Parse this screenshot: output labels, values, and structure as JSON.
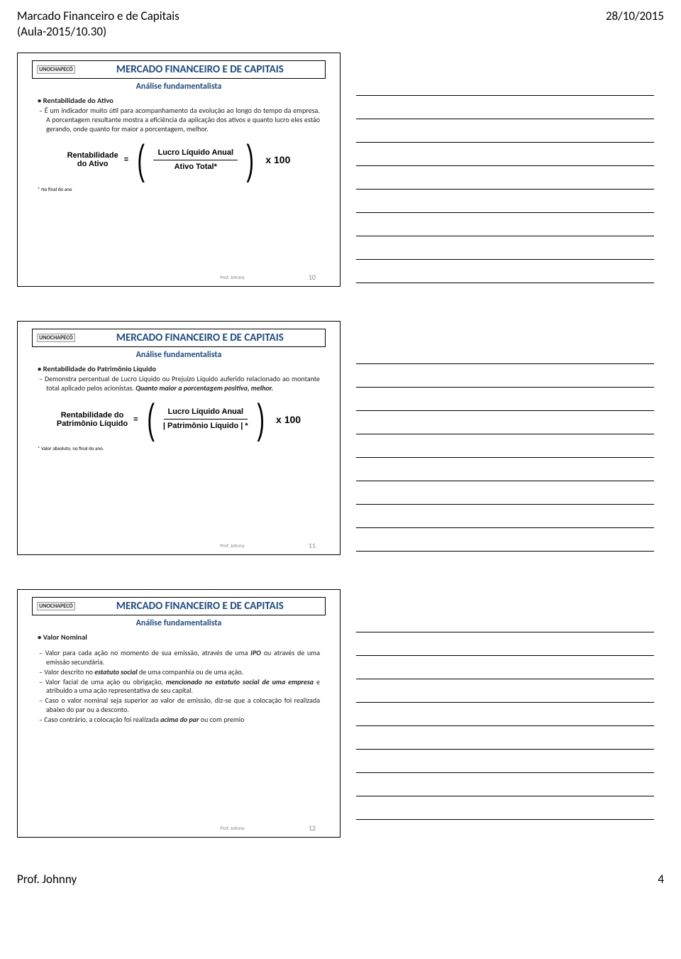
{
  "header": {
    "title_line1": "Marcado Financeiro e de Capitais",
    "title_line2": "(Aula-2015/10.30)",
    "date": "28/10/2015"
  },
  "slides": [
    {
      "logo": "UNOCHAPECÓ",
      "title": "MERCADO FINANCEIRO E DE CAPITAIS",
      "subtitle": "Análise fundamentalista",
      "topic": "Rentabilidade do Ativo",
      "bullets": [
        "É um indicador muito útil para acompanhamento da evolução ao longo do tempo da empresa. A porcentagem resultante mostra a eficiência da aplicação dos ativos e quanto lucro eles estão gerando, onde quanto for maior a porcentagem, melhor."
      ],
      "formula": {
        "lhs1": "Rentabilidade",
        "lhs2": "do Ativo",
        "top": "Lucro Líquido Anual",
        "bot": "Ativo Total*",
        "mult": "x 100"
      },
      "footnote": "* No final do ano",
      "author": "Prof. Johnny",
      "page": "10"
    },
    {
      "logo": "UNOCHAPECÓ",
      "title": "MERCADO FINANCEIRO E DE CAPITAIS",
      "subtitle": "Análise fundamentalista",
      "topic": "Rentabilidade do Patrimônio Líquido",
      "bullets": [
        "Demonstra percentual de Lucro Líquido ou Prejuízo Líquido auferido relacionado ao montante total aplicado pelos acionistas. Quanto maior a porcentagem positiva, melhor."
      ],
      "formula": {
        "lhs1": "Rentabilidade do",
        "lhs2": "Patrimônio Líquido",
        "top": "Lucro Líquido Anual",
        "bot": "| Patrimônio Líquido | *",
        "mult": "x 100"
      },
      "footnote": "* Valor absoluto, no final do ano.",
      "author": "Prof. Johnny",
      "page": "11"
    },
    {
      "logo": "UNOCHAPECÓ",
      "title": "MERCADO FINANCEIRO E DE CAPITAIS",
      "subtitle": "Análise fundamentalista",
      "topic": "Valor Nominal",
      "list": [
        "Valor para cada ação no momento de sua emissão, através de uma <b><i>IPO</i></b> ou através de uma emissão secundária.",
        "Valor descrito no <b><i>estatuto social</i></b> de uma companhia ou de uma ação.",
        "Valor facial de uma ação ou obrigação, <b><i>mencionado no estatuto social de uma empresa</i></b> e atribuído a uma ação representativa de seu capital.",
        "Caso o valor nominal seja superior ao valor de emissão, diz-se que a colocação foi realizada abaixo do par ou a desconto.",
        "Caso contrário, a colocação foi realizada <b><i>acima do par</i></b> ou com premio"
      ],
      "author": "Prof. Johnny",
      "page": "12"
    }
  ],
  "footer": {
    "author": "Prof. Johnny",
    "page": "4"
  },
  "colors": {
    "heading": "#1f497d",
    "text": "#000000",
    "footer_muted": "#888888",
    "background": "#ffffff"
  }
}
